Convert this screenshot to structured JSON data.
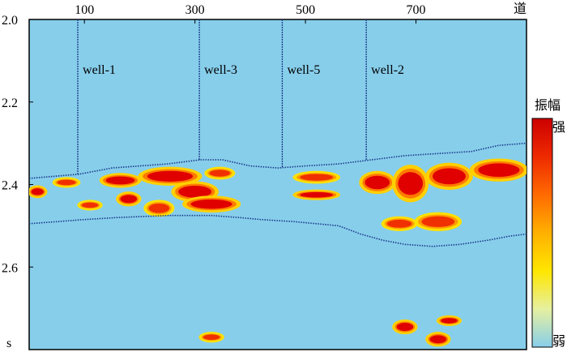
{
  "chart_data": {
    "type": "heatmap",
    "title": "",
    "x_unit_label": "道",
    "y_unit_label": "s",
    "x_ticks": [
      "100",
      "300",
      "500",
      "700"
    ],
    "y_ticks": [
      "2.0",
      "2.2",
      "2.4",
      "2.6"
    ],
    "xlim": [
      0,
      900
    ],
    "ylim": [
      2.0,
      2.8
    ],
    "background_color": "#87ceeb",
    "wells": [
      {
        "name": "well-1",
        "x": 88
      },
      {
        "name": "well-3",
        "x": 308
      },
      {
        "name": "well-5",
        "x": 458
      },
      {
        "name": "well-2",
        "x": 610
      }
    ],
    "horizons": {
      "top": [
        [
          0,
          2.385
        ],
        [
          90,
          2.375
        ],
        [
          150,
          2.36
        ],
        [
          250,
          2.35
        ],
        [
          310,
          2.34
        ],
        [
          350,
          2.34
        ],
        [
          400,
          2.355
        ],
        [
          450,
          2.36
        ],
        [
          500,
          2.355
        ],
        [
          560,
          2.35
        ],
        [
          620,
          2.34
        ],
        [
          680,
          2.33
        ],
        [
          740,
          2.325
        ],
        [
          800,
          2.32
        ],
        [
          850,
          2.305
        ],
        [
          900,
          2.3
        ]
      ],
      "bottom": [
        [
          0,
          2.495
        ],
        [
          50,
          2.49
        ],
        [
          100,
          2.485
        ],
        [
          160,
          2.48
        ],
        [
          250,
          2.475
        ],
        [
          330,
          2.475
        ],
        [
          380,
          2.48
        ],
        [
          420,
          2.485
        ],
        [
          480,
          2.49
        ],
        [
          520,
          2.495
        ],
        [
          560,
          2.5
        ],
        [
          600,
          2.52
        ],
        [
          640,
          2.535
        ],
        [
          680,
          2.545
        ],
        [
          730,
          2.55
        ],
        [
          780,
          2.545
        ],
        [
          830,
          2.535
        ],
        [
          870,
          2.525
        ],
        [
          900,
          2.52
        ]
      ]
    },
    "anomalies": [
      {
        "x": [
          0,
          30
        ],
        "t": [
          2.405,
          2.43
        ],
        "level": "strong"
      },
      {
        "x": [
          45,
          90
        ],
        "t": [
          2.385,
          2.405
        ],
        "level": "medium"
      },
      {
        "x": [
          90,
          130
        ],
        "t": [
          2.44,
          2.46
        ],
        "level": "medium"
      },
      {
        "x": [
          130,
          200
        ],
        "t": [
          2.375,
          2.405
        ],
        "level": "strong"
      },
      {
        "x": [
          160,
          200
        ],
        "t": [
          2.42,
          2.45
        ],
        "level": "strong"
      },
      {
        "x": [
          200,
          310
        ],
        "t": [
          2.36,
          2.4
        ],
        "level": "strong"
      },
      {
        "x": [
          210,
          260
        ],
        "t": [
          2.44,
          2.475
        ],
        "level": "medium"
      },
      {
        "x": [
          260,
          340
        ],
        "t": [
          2.395,
          2.44
        ],
        "level": "strong"
      },
      {
        "x": [
          280,
          380
        ],
        "t": [
          2.43,
          2.465
        ],
        "level": "strong"
      },
      {
        "x": [
          320,
          370
        ],
        "t": [
          2.36,
          2.385
        ],
        "level": "medium"
      },
      {
        "x": [
          480,
          560
        ],
        "t": [
          2.37,
          2.395
        ],
        "level": "medium"
      },
      {
        "x": [
          480,
          560
        ],
        "t": [
          2.415,
          2.435
        ],
        "level": "strong"
      },
      {
        "x": [
          600,
          660
        ],
        "t": [
          2.37,
          2.42
        ],
        "level": "strong"
      },
      {
        "x": [
          660,
          720
        ],
        "t": [
          2.355,
          2.44
        ],
        "level": "strong"
      },
      {
        "x": [
          720,
          800
        ],
        "t": [
          2.35,
          2.41
        ],
        "level": "strong"
      },
      {
        "x": [
          800,
          900
        ],
        "t": [
          2.34,
          2.39
        ],
        "level": "strong"
      },
      {
        "x": [
          640,
          700
        ],
        "t": [
          2.48,
          2.51
        ],
        "level": "medium"
      },
      {
        "x": [
          700,
          780
        ],
        "t": [
          2.47,
          2.51
        ],
        "level": "medium"
      },
      {
        "x": [
          310,
          350
        ],
        "t": [
          2.76,
          2.78
        ],
        "level": "medium"
      },
      {
        "x": [
          660,
          700
        ],
        "t": [
          2.73,
          2.76
        ],
        "level": "strong"
      },
      {
        "x": [
          720,
          760
        ],
        "t": [
          2.76,
          2.79
        ],
        "level": "strong"
      },
      {
        "x": [
          740,
          780
        ],
        "t": [
          2.72,
          2.74
        ],
        "level": "strong"
      }
    ],
    "colorbar": {
      "title": "振幅",
      "high_label": "强",
      "low_label": "弱",
      "stops": [
        "#cc0000",
        "#ee2a00",
        "#ff6a00",
        "#ffb000",
        "#ffe600",
        "#e6f0a0",
        "#87ceeb"
      ]
    }
  }
}
